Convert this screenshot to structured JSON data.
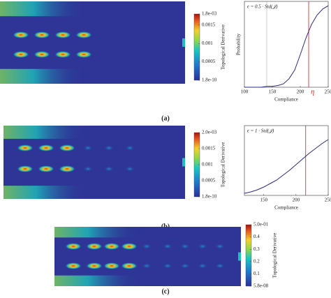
{
  "panels": [
    {
      "caption": "(a)",
      "colorbar": {
        "label": "Topological Derivative",
        "ticks": [
          {
            "value": 0.0018,
            "label": "1.8e-03"
          },
          {
            "value": 0.0015,
            "label": "0.0015"
          },
          {
            "value": 0.001,
            "label": "0.001"
          },
          {
            "value": 0.0005,
            "label": "0.0005"
          },
          {
            "value": 1.8e-10,
            "label": "1.8e-10"
          }
        ]
      },
      "plot": {
        "annotation": "ϵ = 0.5 · Std(𝒥)",
        "xlabel": "Compliance",
        "ylabel": "Probability",
        "xlim": [
          100,
          250
        ],
        "ylim": [
          0,
          1
        ],
        "xticks": [
          100,
          150,
          200,
          250
        ],
        "x": [
          100,
          110,
          120,
          130,
          140,
          150,
          160,
          170,
          180,
          190,
          200,
          210,
          220,
          230,
          240,
          250
        ],
        "y": [
          0,
          0,
          0,
          0,
          0.01,
          0.01,
          0.02,
          0.04,
          0.1,
          0.2,
          0.38,
          0.57,
          0.73,
          0.84,
          0.91,
          0.95
        ],
        "gray_line": 140,
        "red_line": 215,
        "red_label": "η"
      }
    },
    {
      "caption": "(b)",
      "colorbar": {
        "label": "Topological Derivative",
        "ticks": [
          {
            "value": 0.002,
            "label": "2.0e-03"
          },
          {
            "value": 0.0015,
            "label": "0.0015"
          },
          {
            "value": 0.001,
            "label": "0.001"
          },
          {
            "value": 0.0005,
            "label": "0.0005"
          },
          {
            "value": 1.8e-10,
            "label": "1.8e-10"
          }
        ]
      },
      "plot": {
        "annotation": "ϵ = 1 · Std(𝒥)",
        "xlabel": "Compliance",
        "xlim": [
          120,
          250
        ],
        "ylim": [
          0,
          1
        ],
        "xticks": [
          150,
          200,
          250
        ],
        "x": [
          120,
          130,
          140,
          150,
          160,
          170,
          180,
          190,
          200,
          210,
          220,
          230,
          240,
          250
        ],
        "y": [
          0.03,
          0.05,
          0.08,
          0.12,
          0.17,
          0.22,
          0.29,
          0.36,
          0.44,
          0.52,
          0.6,
          0.67,
          0.74,
          0.8
        ],
        "red_line": 215
      }
    },
    {
      "caption": "(c)",
      "colorbar": {
        "label": "Topological Derivative",
        "ticks": [
          {
            "value": 0.5,
            "label": "5.0e-01"
          },
          {
            "value": 0.4,
            "label": "0.4"
          },
          {
            "value": 0.3,
            "label": "0.3"
          },
          {
            "value": 0.2,
            "label": "0.2"
          },
          {
            "value": 0.1,
            "label": "0.1"
          },
          {
            "value": 5.8e-08,
            "label": "5.8e-08"
          }
        ]
      }
    }
  ]
}
